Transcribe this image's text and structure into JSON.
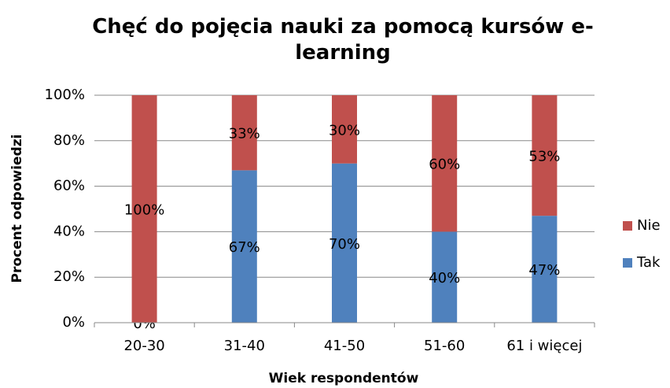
{
  "chart_data": {
    "type": "stacked_bar",
    "title": "Chęć do pojęcia nauki za pomocą kursów e-learning",
    "x_label": "Wiek respondentów",
    "y_label": "Procent odpowiedzi",
    "categories": [
      "20-30",
      "31-40",
      "41-50",
      "51-60",
      "61 i więcej"
    ],
    "series": [
      {
        "name": "Tak",
        "color": "#4f81bd",
        "values": [
          0,
          67,
          70,
          40,
          47
        ],
        "value_labels": [
          "0%",
          "67%",
          "70%",
          "40%",
          "47%"
        ]
      },
      {
        "name": "Nie",
        "color": "#c0504d",
        "values": [
          100,
          33,
          30,
          60,
          53
        ],
        "value_labels": [
          "100%",
          "33%",
          "30%",
          "60%",
          "53%"
        ]
      }
    ],
    "ylim": [
      0,
      100
    ],
    "yticks": [
      {
        "value": 0,
        "label": "0%"
      },
      {
        "value": 20,
        "label": "20%"
      },
      {
        "value": 40,
        "label": "40%"
      },
      {
        "value": 60,
        "label": "60%"
      },
      {
        "value": 80,
        "label": "80%"
      },
      {
        "value": 100,
        "label": "100%"
      }
    ],
    "grid": true,
    "legend": "right"
  }
}
